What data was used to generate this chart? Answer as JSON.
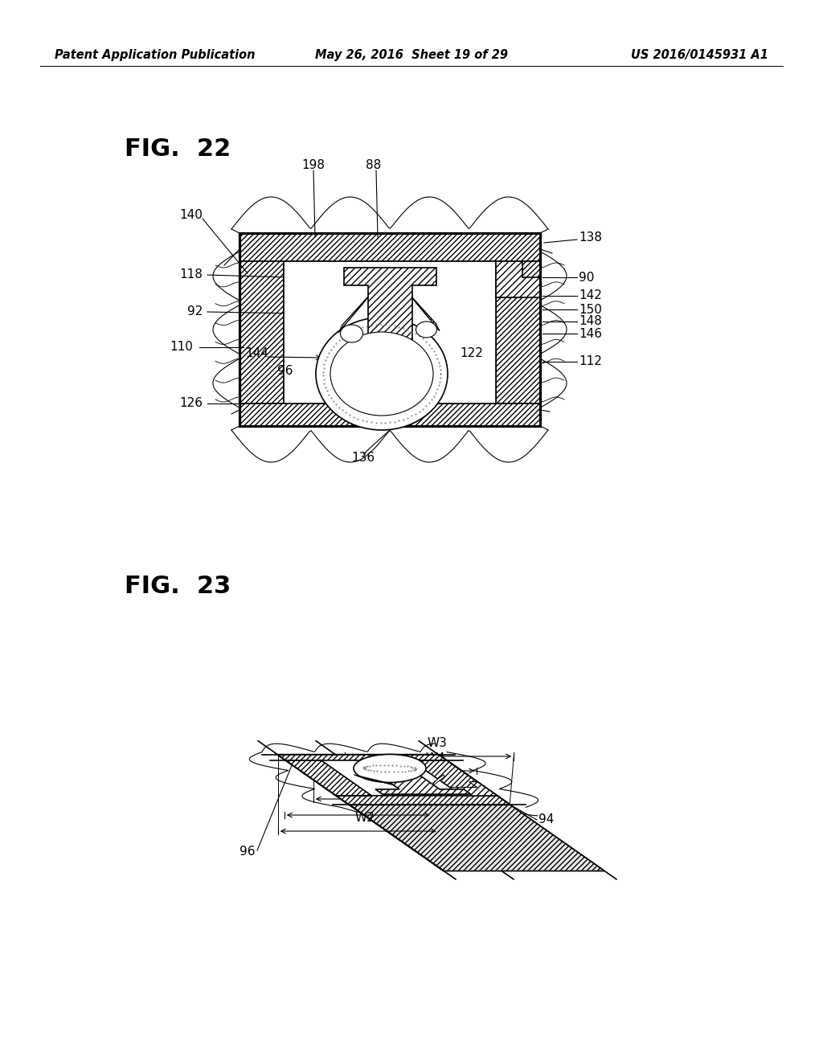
{
  "background_color": "#ffffff",
  "line_color": "#000000",
  "text_color": "#000000",
  "header_left": "Patent Application Publication",
  "header_center": "May 26, 2016  Sheet 19 of 29",
  "header_right": "US 2016/0145931 A1",
  "header_fontsize": 10.5,
  "fig22_label": "FIG.  22",
  "fig23_label": "FIG.  23"
}
